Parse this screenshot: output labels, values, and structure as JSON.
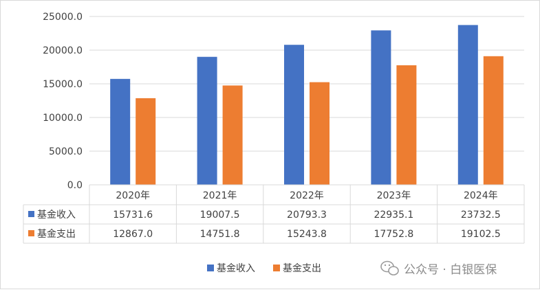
{
  "chart_data": {
    "type": "bar",
    "categories": [
      "2020年",
      "2021年",
      "2022年",
      "2023年",
      "2024年"
    ],
    "series": [
      {
        "name": "基金收入",
        "color": "#4472C4",
        "values": [
          15731.6,
          19007.5,
          20793.3,
          22935.1,
          23732.5
        ]
      },
      {
        "name": "基金支出",
        "color": "#ED7D31",
        "values": [
          12867.0,
          14751.8,
          15243.8,
          17752.8,
          19102.5
        ]
      }
    ],
    "ylim": [
      0,
      25000
    ],
    "yticks": [
      0,
      5000,
      10000,
      15000,
      20000,
      25000
    ],
    "ytick_labels": [
      "0.0",
      "5000.0",
      "10000.0",
      "15000.0",
      "20000.0",
      "25000.0"
    ],
    "value_labels": [
      [
        "15731.6",
        "19007.5",
        "20793.3",
        "22935.1",
        "23732.5"
      ],
      [
        "12867.0",
        "14751.8",
        "15243.8",
        "17752.8",
        "19102.5"
      ]
    ],
    "grid": true,
    "legend": "bottom",
    "data_table": true
  },
  "watermark": {
    "text": "公众号 · 白银医保",
    "icon": "wechat-icon"
  }
}
